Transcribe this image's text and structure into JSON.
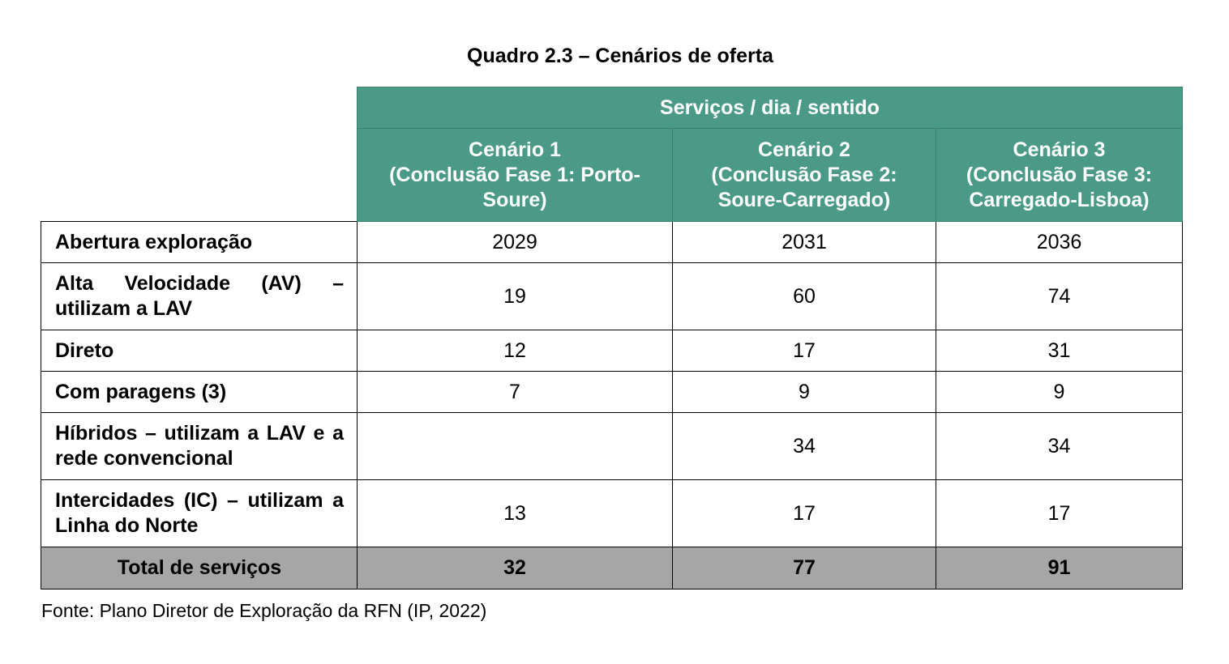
{
  "title": "Quadro 2.3 – Cenários de oferta",
  "table": {
    "group_header": "Serviços / dia / sentido",
    "scenarios": [
      {
        "name": "Cenário 1",
        "desc_line1": "(Conclusão Fase 1: Porto-",
        "desc_line2": "Soure)"
      },
      {
        "name": "Cenário 2",
        "desc_line1": "(Conclusão Fase 2:",
        "desc_line2": "Soure-Carregado)"
      },
      {
        "name": "Cenário 3",
        "desc_line1": "(Conclusão Fase 3:",
        "desc_line2": "Carregado-Lisboa)"
      }
    ],
    "rows": [
      {
        "label": "Abertura exploração",
        "values": [
          "2029",
          "2031",
          "2036"
        ]
      },
      {
        "label": "Alta Velocidade (AV) – utilizam a LAV",
        "values": [
          "19",
          "60",
          "74"
        ]
      },
      {
        "label": "Direto",
        "values": [
          "12",
          "17",
          "31"
        ]
      },
      {
        "label": "Com paragens (3)",
        "values": [
          "7",
          "9",
          "9"
        ]
      },
      {
        "label": "Híbridos – utilizam a LAV e a rede convencional",
        "values": [
          "",
          "34",
          "34"
        ]
      },
      {
        "label": "Intercidades (IC) – utilizam a Linha do Norte",
        "values": [
          "13",
          "17",
          "17"
        ]
      }
    ],
    "total": {
      "label": "Total de serviços",
      "values": [
        "32",
        "77",
        "91"
      ]
    }
  },
  "source": "Fonte: Plano Diretor de Exploração da RFN (IP, 2022)",
  "colors": {
    "header_bg": "#4a9a87",
    "total_bg": "#a6a6a6"
  }
}
